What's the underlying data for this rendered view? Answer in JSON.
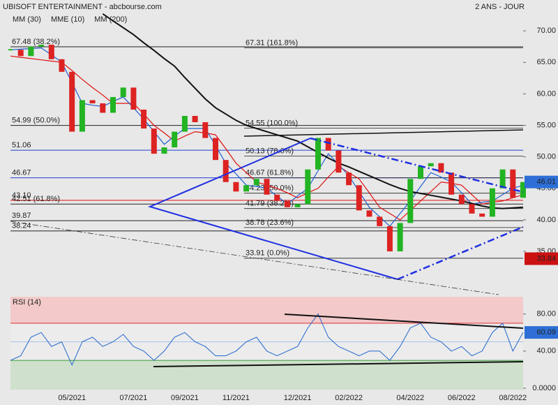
{
  "chart_data": [
    {
      "type": "candlestick",
      "title": "UBISOFT ENTERTAINMENT - abcbourse.com",
      "subtitle": "2 ANS - JOUR",
      "categories": [
        null,
        null,
        null,
        null,
        null,
        null,
        "05/2021",
        null,
        null,
        null,
        null,
        null,
        "07/2021",
        null,
        null,
        null,
        null,
        "09/2021",
        null,
        null,
        null,
        null,
        "11/2021",
        null,
        null,
        null,
        null,
        null,
        "12/2021",
        null,
        null,
        null,
        null,
        "02/2022",
        null,
        null,
        null,
        null,
        null,
        "04/2022",
        null,
        null,
        null,
        null,
        "06/2022",
        null,
        null,
        null,
        null,
        "08/2022",
        null
      ],
      "values": [
        67,
        66,
        67.5,
        67.8,
        65.5,
        63.5,
        54,
        59,
        58.5,
        57,
        59.5,
        61,
        57.5,
        54.5,
        50.5,
        51.5,
        54,
        56.5,
        55.5,
        53,
        49.5,
        46,
        44.5,
        45.5,
        46.5,
        44,
        43,
        42,
        42.5,
        48,
        53,
        51,
        47.5,
        45.5,
        41.5,
        40.5,
        39,
        35,
        39.5,
        46.5,
        48.5,
        49,
        47.5,
        44,
        42.5,
        41,
        40.5,
        45,
        48,
        43.5,
        46.01
      ],
      "up_color": "#22b422",
      "down_color": "#dd2222",
      "series": [
        {
          "name": "MM (30)",
          "color": "#e01010",
          "values": [
            66,
            65.8,
            65.6,
            65.4,
            65.2,
            65,
            63.7,
            62.3,
            61,
            59.8,
            58.5,
            58.5,
            58.5,
            56.8,
            55,
            53.8,
            52.5,
            53.3,
            54,
            53.8,
            53.5,
            51.3,
            49,
            47.5,
            46,
            45.5,
            45,
            44.3,
            43.5,
            44.3,
            45,
            46.8,
            48.5,
            47.5,
            46.5,
            44.3,
            42,
            41,
            40,
            41.5,
            43,
            44.5,
            46,
            45.8,
            45.5,
            44,
            42.5,
            42.8,
            43,
            43.5,
            44
          ]
        },
        {
          "name": "MME (10)",
          "color": "#2060d0",
          "values": [
            67,
            67.1,
            67.2,
            67.3,
            66.2,
            65,
            61.8,
            58.5,
            58.2,
            58,
            58.8,
            59.5,
            57.8,
            56,
            54,
            52,
            53.3,
            54.5,
            54.5,
            54.5,
            51.8,
            49,
            47.3,
            45.5,
            45.3,
            45,
            43.8,
            42.5,
            43.8,
            45,
            47.8,
            50.5,
            48.8,
            47,
            44.5,
            42,
            40.5,
            39,
            41,
            43,
            45.3,
            47.5,
            46.8,
            46,
            44.3,
            42.5,
            42.8,
            43,
            44,
            45,
            45.5
          ]
        },
        {
          "name": "MM (200)",
          "color": "#111111",
          "values": [
            null,
            null,
            null,
            null,
            null,
            null,
            null,
            null,
            null,
            72.7,
            71.6,
            70.5,
            69.4,
            68.1,
            66.9,
            65.6,
            64.4,
            62.6,
            60.9,
            59.2,
            57.8,
            56.8,
            55.8,
            55,
            54.5,
            54,
            53.5,
            53,
            52.5,
            51.6,
            50.7,
            49.8,
            49,
            48.4,
            47.7,
            47,
            46.3,
            45.6,
            45,
            44.5,
            44.2,
            43.9,
            43.6,
            43.3,
            43,
            42.6,
            42.2,
            41.9,
            41.8,
            41.9,
            42
          ]
        }
      ],
      "low_label": 33.84,
      "ylim": [
        28.9,
        74.9
      ],
      "yticks": [
        {
          "value": 70,
          "label": "70.00"
        },
        {
          "value": 65,
          "label": "65.00"
        },
        {
          "value": 60,
          "label": "60.00"
        },
        {
          "value": 55,
          "label": "55.00"
        },
        {
          "value": 50,
          "label": "50.00"
        },
        {
          "value": 45,
          "label": "45.00"
        },
        {
          "value": 40,
          "label": "40.00"
        },
        {
          "value": 35,
          "label": "35.00"
        }
      ],
      "levels_left": [
        {
          "value": 67.48,
          "label": "67.48  (38.2%)",
          "color": "#222222"
        },
        {
          "value": 54.99,
          "label": "54.99  (50.0%)",
          "color": "#222222"
        },
        {
          "value": 51.06,
          "label": "51.06",
          "color": "#1f3fd0"
        },
        {
          "value": 46.67,
          "label": "46.67",
          "color": "#1f3fd0"
        },
        {
          "value": 43.1,
          "label": "43.10",
          "color": "#e01010"
        },
        {
          "value": 42.51,
          "label": "42.51  (61.8%)",
          "color": "#222222"
        },
        {
          "value": 39.87,
          "label": "39.87",
          "color": "#222222"
        },
        {
          "value": 38.24,
          "label": "38.24",
          "color": "#222222"
        }
      ],
      "levels_right": [
        {
          "value": 67.31,
          "label": "67.31  (161.8%)"
        },
        {
          "value": 54.55,
          "label": "54.55  (100.0%)"
        },
        {
          "value": 50.13,
          "label": "50.13  (78.6%)"
        },
        {
          "value": 46.67,
          "label": "46.67  (61.8%)"
        },
        {
          "value": 44.23,
          "label": "44.23  (50.0%)"
        },
        {
          "value": 41.79,
          "label": "41.79  (38.2%)"
        },
        {
          "value": 38.78,
          "label": "38.78  (23.6%)"
        },
        {
          "value": 33.91,
          "label": "33.91  (0.0%)"
        }
      ]
    },
    {
      "type": "line",
      "title": "RSI (14)",
      "color": "#2266cc",
      "values": [
        30,
        35,
        55,
        60,
        45,
        50,
        25,
        50,
        55,
        45,
        50,
        58,
        45,
        40,
        30,
        40,
        55,
        60,
        50,
        45,
        35,
        35,
        40,
        50,
        55,
        40,
        35,
        40,
        45,
        65,
        80,
        55,
        45,
        40,
        35,
        40,
        40,
        30,
        45,
        65,
        70,
        55,
        50,
        40,
        45,
        35,
        40,
        60,
        70,
        40,
        60.09
      ],
      "overbought": 70,
      "midline": 50,
      "oversold": 30,
      "ylim": [
        -1.5,
        98.5
      ],
      "yticks": [
        {
          "value": 80,
          "label": "80.00"
        },
        {
          "value": 40,
          "label": "40.00"
        },
        {
          "value": 0,
          "label": "0.0000"
        }
      ]
    }
  ]
}
